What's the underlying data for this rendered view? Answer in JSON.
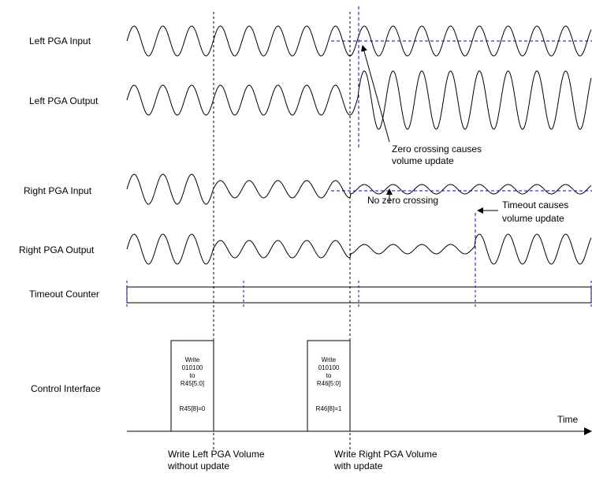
{
  "rows": {
    "left_input": "Left PGA Input",
    "left_output": "Left PGA Output",
    "right_input": "Right PGA Input",
    "right_output": "Right PGA Output",
    "timeout_counter": "Timeout Counter",
    "control_interface": "Control Interface"
  },
  "annotations": {
    "zero_crossing_line1": "Zero crossing causes",
    "zero_crossing_line2": "volume update",
    "no_zero_crossing": "No zero crossing",
    "timeout_line1": "Timeout causes",
    "timeout_line2": "volume update"
  },
  "axis": {
    "time_label": "Time"
  },
  "writes": [
    {
      "lines": [
        "Write",
        "010100",
        "to",
        "R45[5:0]"
      ],
      "reg_bit": "R45[8]=0",
      "caption_line1": "Write Left PGA Volume",
      "caption_line2": "without update"
    },
    {
      "lines": [
        "Write",
        "010100",
        "to",
        "R46[5:0]"
      ],
      "reg_bit": "R46[8]=1",
      "caption_line1": "Write Right PGA Volume",
      "caption_line2": "with update"
    }
  ],
  "colors": {
    "signal": "#000000",
    "marker": "#0000cc"
  }
}
